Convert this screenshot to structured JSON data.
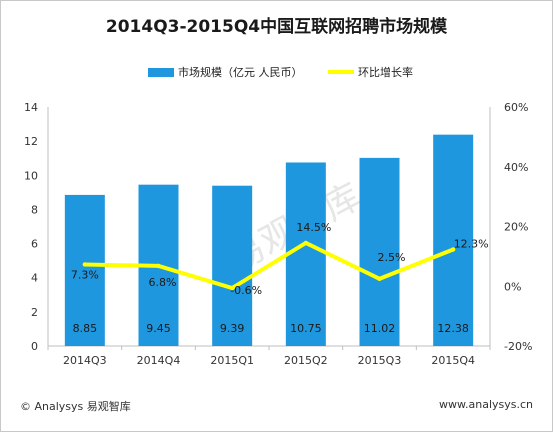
{
  "title": "2014Q3-2015Q4中国互联网招聘市场规模",
  "footer": {
    "left": "© Analysys 易观智库",
    "right": "www.analysys.cn"
  },
  "watermark": "易观智库",
  "colors": {
    "bar": "#1f97de",
    "line": "#ffff00",
    "axis": "#bfbfbf"
  },
  "chart_data": {
    "type": "bar+line",
    "categories": [
      "2014Q3",
      "2014Q4",
      "2015Q1",
      "2015Q2",
      "2015Q3",
      "2015Q4"
    ],
    "series": [
      {
        "name": "市场规模（亿元 人民币）",
        "type": "bar",
        "axis": "left",
        "values": [
          8.85,
          9.45,
          9.39,
          10.75,
          11.02,
          12.38
        ],
        "labels": [
          "8.85",
          "9.45",
          "9.39",
          "10.75",
          "11.02",
          "12.38"
        ]
      },
      {
        "name": "环比增长率",
        "type": "line",
        "axis": "right",
        "values": [
          7.3,
          6.8,
          -0.6,
          14.5,
          2.5,
          12.3
        ],
        "labels": [
          "7.3%",
          "6.8%",
          "-0.6%",
          "14.5%",
          "2.5%",
          "12.3%"
        ]
      }
    ],
    "y_left": {
      "min": 0,
      "max": 14,
      "ticks": [
        "0",
        "2",
        "4",
        "6",
        "8",
        "10",
        "12",
        "14"
      ]
    },
    "y_right": {
      "min": -20,
      "max": 60,
      "ticks": [
        "-20%",
        "0%",
        "20%",
        "40%",
        "60%"
      ]
    },
    "legend_position": "top",
    "grid": false
  }
}
